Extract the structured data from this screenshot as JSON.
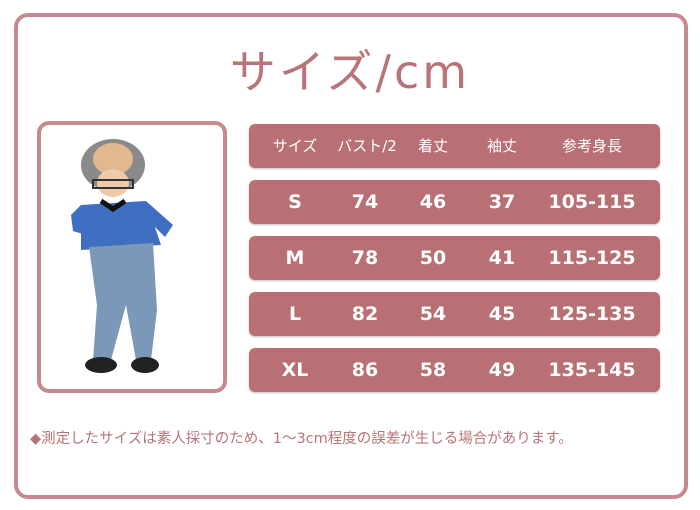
{
  "title": "サイズ/cm",
  "table": {
    "headers": [
      "サイズ",
      "バスト/2",
      "着丈",
      "袖丈",
      "参考身長"
    ],
    "rows": [
      [
        "S",
        "74",
        "46",
        "37",
        "105-115"
      ],
      [
        "M",
        "78",
        "50",
        "41",
        "115-125"
      ],
      [
        "L",
        "82",
        "54",
        "45",
        "125-135"
      ],
      [
        "XL",
        "86",
        "58",
        "49",
        "135-145"
      ]
    ]
  },
  "note": "◆測定したサイズは素人採寸のため、1～3cm程度の誤差が生じる場合があります。",
  "colors": {
    "accent": "#b87074",
    "border": "#c68a8e",
    "text": "#b87478"
  }
}
